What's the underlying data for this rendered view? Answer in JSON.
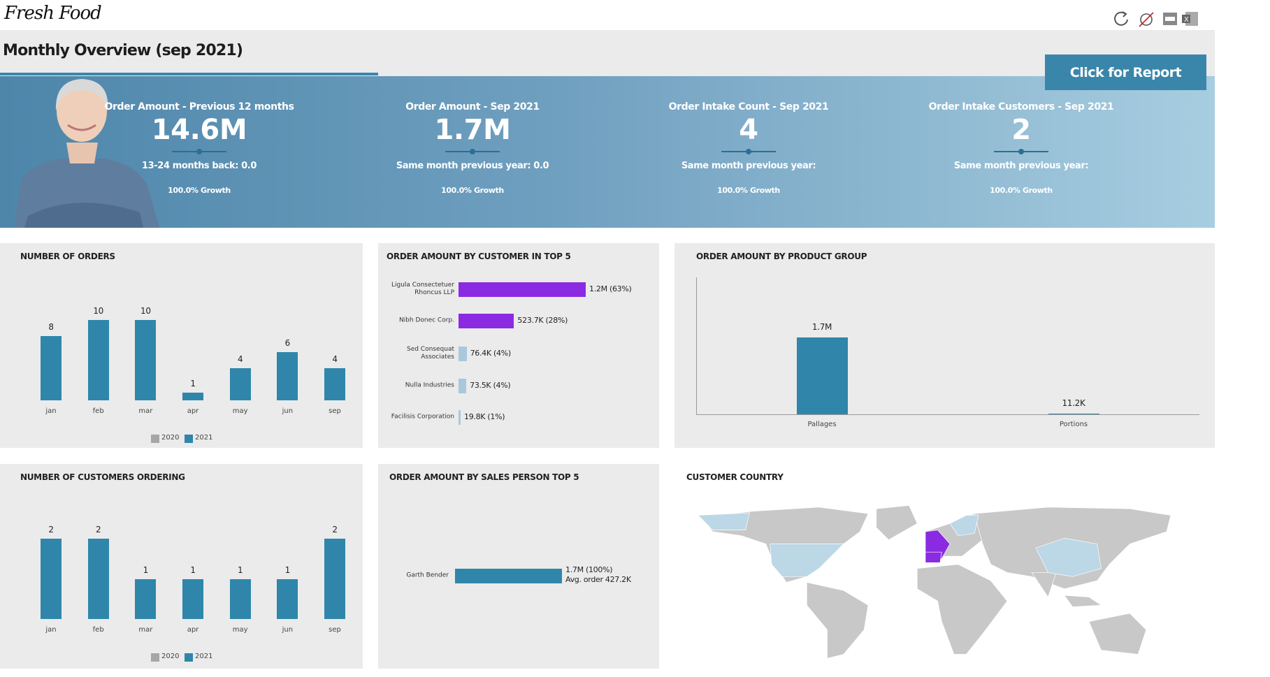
{
  "header": {
    "logo": "Fresh Food",
    "title": "Monthly Overview (sep 2021)",
    "button": "Click for Report"
  },
  "kpis": [
    {
      "label": "Order Amount - Previous 12 months",
      "value": "14.6M",
      "sub": "13-24 months back: 0.0",
      "growth": "100.0% Growth"
    },
    {
      "label": "Order Amount - Sep 2021",
      "value": "1.7M",
      "sub": "Same month previous year: 0.0",
      "growth": "100.0% Growth"
    },
    {
      "label": "Order Intake Count - Sep 2021",
      "value": "4",
      "sub": "Same month previous year:",
      "growth": "100.0% Growth"
    },
    {
      "label": "Order Intake Customers - Sep 2021",
      "value": "2",
      "sub": "Same month previous year:",
      "growth": "100.0% Growth"
    }
  ],
  "chart_data": [
    {
      "type": "bar",
      "title": "NUMBER OF ORDERS",
      "categories": [
        "jan",
        "feb",
        "mar",
        "apr",
        "may",
        "jun",
        "sep"
      ],
      "series": [
        {
          "name": "2020",
          "color": "#a6a6a6",
          "values": [
            null,
            null,
            null,
            null,
            null,
            null,
            null
          ]
        },
        {
          "name": "2021",
          "color": "#2f86aa",
          "values": [
            8,
            10,
            10,
            1,
            4,
            6,
            4
          ]
        }
      ]
    },
    {
      "type": "hbar",
      "title": "ORDER AMOUNT BY CUSTOMER IN TOP 5",
      "categories": [
        "Ligula Consectetuer Rhoncus LLP",
        "Nibh Donec Corp.",
        "Sed Consequat Associates",
        "Nulla Industries",
        "Facilisis Corporation"
      ],
      "values": [
        1200000,
        523700,
        76400,
        73500,
        19800
      ],
      "value_labels": [
        "1.2M (63%)",
        "523.7K (28%)",
        "76.4K (4%)",
        "73.5K (4%)",
        "19.8K (1%)"
      ],
      "colors": [
        "#8a2be2",
        "#8a2be2",
        "#a9c8dc",
        "#a9c8dc",
        "#a9c8dc"
      ]
    },
    {
      "type": "column",
      "title": "ORDER AMOUNT BY PRODUCT GROUP",
      "categories": [
        "Pallages",
        "Portions"
      ],
      "values": [
        1700000,
        11200
      ],
      "value_labels": [
        "1.7M",
        "11.2K"
      ],
      "color": "#2f86aa"
    },
    {
      "type": "bar",
      "title": "NUMBER OF CUSTOMERS ORDERING",
      "categories": [
        "jan",
        "feb",
        "mar",
        "apr",
        "may",
        "jun",
        "sep"
      ],
      "series": [
        {
          "name": "2020",
          "color": "#a6a6a6",
          "values": [
            null,
            null,
            null,
            null,
            null,
            null,
            null
          ]
        },
        {
          "name": "2021",
          "color": "#2f86aa",
          "values": [
            2,
            2,
            1,
            1,
            1,
            1,
            2
          ]
        }
      ]
    },
    {
      "type": "hbar",
      "title": "ORDER AMOUNT BY SALES PERSON TOP 5",
      "categories": [
        "Garth Bender"
      ],
      "values": [
        1700000
      ],
      "value_labels": [
        "1.7M (100%)"
      ],
      "annotations": [
        "Avg. order 427.2K"
      ],
      "colors": [
        "#2f86aa"
      ]
    }
  ],
  "map": {
    "title": "CUSTOMER COUNTRY"
  }
}
